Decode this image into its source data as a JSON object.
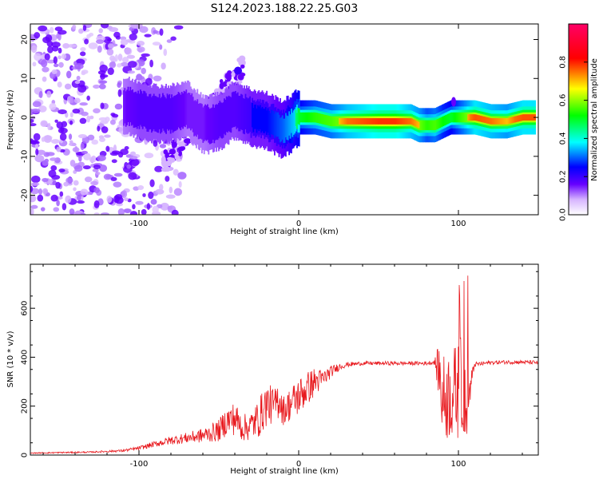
{
  "title": "S124.2023.188.22.25.G03",
  "chart_data": [
    {
      "type": "heatmap",
      "xlabel": "Height of straight line (km)",
      "ylabel": "Frequency (Hz)",
      "xlim": [
        -168,
        150
      ],
      "ylim": [
        -25,
        24
      ],
      "xticks": [
        -100,
        0,
        100
      ],
      "xticklabels": [
        "-100",
        "0",
        "100"
      ],
      "yticks": [
        -20,
        -10,
        0,
        10,
        20
      ],
      "yticklabels": [
        "-20",
        "-10",
        "0",
        "10",
        "20"
      ],
      "colorbar": {
        "label": "Normalized spectral amplitude",
        "range": [
          0,
          1
        ],
        "ticks": [
          0.0,
          0.2,
          0.4,
          0.6,
          0.8
        ],
        "ticklabels": [
          "0.0",
          "0.2",
          "0.4",
          "0.6",
          "0.8"
        ],
        "colormap": [
          "#ffffff",
          "#6600ff",
          "#0000ff",
          "#00ffff",
          "#00ff00",
          "#ffff00",
          "#ff0000",
          "#ff0066"
        ]
      },
      "ridge": {
        "x": [
          -110,
          -100,
          -90,
          -80,
          -70,
          -60,
          -50,
          -40,
          -30,
          -20,
          -10,
          0,
          10,
          20,
          30,
          40,
          50,
          60,
          70,
          75,
          80,
          85,
          90,
          95,
          100,
          110,
          120,
          130,
          140,
          148
        ],
        "f": [
          3,
          2,
          1,
          1,
          2,
          -2,
          -1,
          2,
          0,
          -1,
          -3,
          0,
          0,
          -1,
          -1,
          -1,
          -1,
          -1,
          -1,
          -2,
          -2,
          -2,
          -1,
          0,
          0,
          0,
          -1,
          -1,
          0,
          0
        ],
        "amp": [
          0.15,
          0.2,
          0.2,
          0.2,
          0.15,
          0.15,
          0.2,
          0.2,
          0.25,
          0.25,
          0.3,
          0.5,
          0.6,
          0.65,
          0.75,
          0.8,
          0.85,
          0.85,
          0.75,
          0.7,
          0.6,
          0.65,
          0.55,
          0.5,
          0.6,
          0.8,
          0.75,
          0.7,
          0.8,
          0.8
        ]
      }
    },
    {
      "type": "line",
      "xlabel": "Height of straight line (km)",
      "ylabel": "SNR (10 * v/v)",
      "xlim": [
        -168,
        150
      ],
      "ylim": [
        0,
        780
      ],
      "xticks": [
        -100,
        0,
        100
      ],
      "xticklabels": [
        "-100",
        "0",
        "100"
      ],
      "yticks": [
        0,
        200,
        400,
        600
      ],
      "yticklabels": [
        "0",
        "200",
        "400",
        "600"
      ],
      "series": [
        {
          "name": "SNR",
          "color": "#e8191e",
          "x": [
            -168,
            -150,
            -130,
            -110,
            -100,
            -90,
            -80,
            -70,
            -60,
            -50,
            -45,
            -40,
            -35,
            -30,
            -25,
            -20,
            -15,
            -12,
            -10,
            -5,
            0,
            5,
            10,
            15,
            20,
            25,
            30,
            40,
            50,
            60,
            70,
            80,
            85,
            88,
            90,
            95,
            100,
            103,
            105,
            110,
            120,
            130,
            140,
            150
          ],
          "values": [
            8,
            10,
            12,
            18,
            28,
            45,
            60,
            70,
            80,
            100,
            140,
            150,
            110,
            120,
            150,
            210,
            200,
            240,
            180,
            210,
            240,
            270,
            300,
            310,
            340,
            360,
            370,
            375,
            375,
            375,
            375,
            375,
            380,
            340,
            230,
            250,
            260,
            300,
            180,
            370,
            378,
            380,
            380,
            378
          ],
          "noise": [
            2,
            3,
            3,
            5,
            8,
            12,
            18,
            22,
            30,
            45,
            60,
            70,
            55,
            60,
            80,
            90,
            70,
            90,
            60,
            70,
            80,
            70,
            60,
            40,
            25,
            15,
            10,
            8,
            8,
            8,
            8,
            8,
            10,
            120,
            180,
            190,
            200,
            220,
            120,
            10,
            8,
            8,
            8,
            8
          ]
        }
      ]
    }
  ]
}
